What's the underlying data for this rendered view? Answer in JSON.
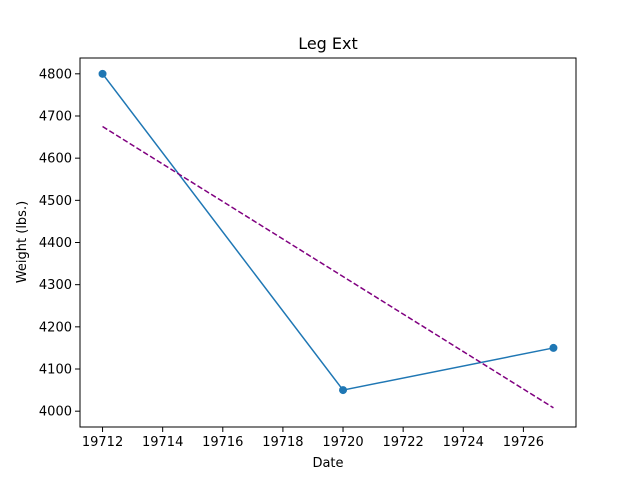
{
  "chart_data": {
    "type": "line",
    "title": "Leg Ext",
    "xlabel": "Date",
    "ylabel": "Weight (lbs.)",
    "xlim": [
      19711.25,
      19727.75
    ],
    "ylim": [
      3962.5,
      4837.5
    ],
    "xticks": [
      19712,
      19714,
      19716,
      19718,
      19720,
      19722,
      19724,
      19726
    ],
    "yticks": [
      4000,
      4100,
      4200,
      4300,
      4400,
      4500,
      4600,
      4700,
      4800
    ],
    "grid": false,
    "series": [
      {
        "kind": "line-markers",
        "color": "#1f77b4",
        "x": [
          19712,
          19720,
          19727
        ],
        "y": [
          4800,
          4050,
          4150
        ]
      },
      {
        "kind": "trend-dashed",
        "color": "#800080",
        "x": [
          19712,
          19727
        ],
        "y": [
          4675,
          4008
        ]
      }
    ]
  }
}
